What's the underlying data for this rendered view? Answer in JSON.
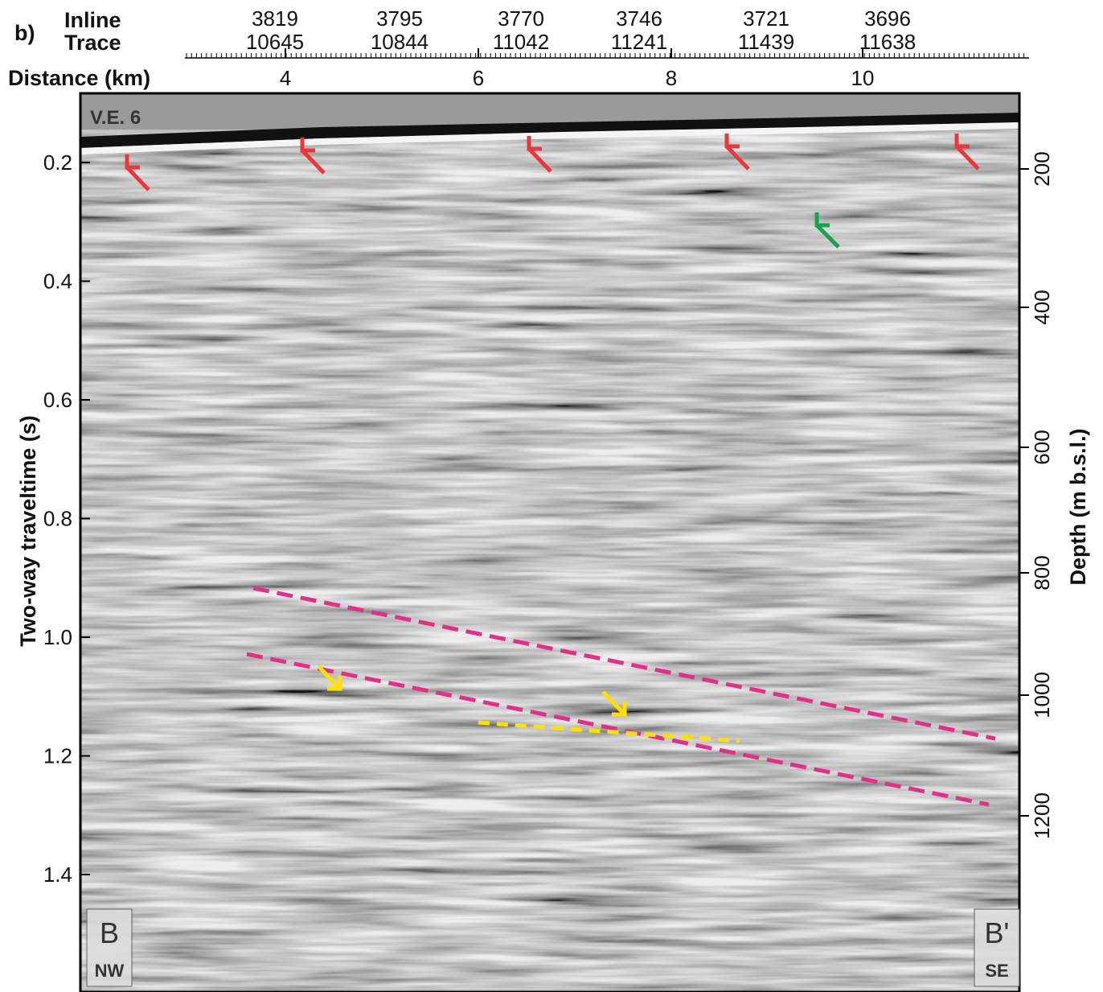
{
  "panel_label": "b)",
  "header": {
    "inline_label": "Inline",
    "trace_label": "Trace",
    "distance_label": "Distance (km)",
    "inline": [
      "3819",
      "3795",
      "3770",
      "3746",
      "3721",
      "3696"
    ],
    "trace": [
      "10645",
      "10844",
      "11042",
      "11241",
      "11439",
      "11638"
    ],
    "distance": [
      "4",
      "6",
      "8",
      "10"
    ]
  },
  "left_axis": {
    "title": "Two-way traveltime (s)",
    "ticks": [
      "0.2",
      "0.4",
      "0.6",
      "0.8",
      "1.0",
      "1.2",
      "1.4"
    ]
  },
  "right_axis": {
    "title": "Depth (m  b.s.l.)",
    "ticks": [
      "200",
      "400",
      "600",
      "800",
      "1000",
      "1200"
    ]
  },
  "annotations": {
    "vertical_exaggeration": "V.E. 6",
    "start_letter": "B",
    "start_dir": "NW",
    "end_letter": "B'",
    "end_dir": "SE"
  }
}
